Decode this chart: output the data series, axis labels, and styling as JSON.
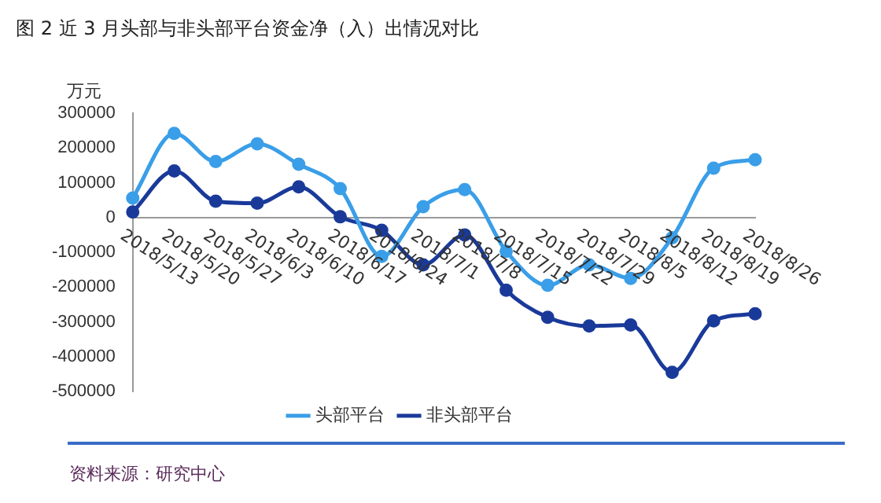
{
  "chart_data": {
    "type": "line",
    "title": "图 2   近 3 月头部与非头部平台资金净（入）出情况对比",
    "ylabel": "万元",
    "categories": [
      "2018/5/13",
      "2018/5/20",
      "2018/5/27",
      "2018/6/3",
      "2018/6/10",
      "2018/6/17",
      "2018/6/24",
      "2018/7/1",
      "2018/7/8",
      "2018/7/15",
      "2018/7/22",
      "2018/7/29",
      "2018/8/5",
      "2018/8/12",
      "2018/8/19",
      "2018/8/26"
    ],
    "series": [
      {
        "name": "头部平台",
        "color": "#3a9ee8",
        "values": [
          56000,
          242000,
          161000,
          212000,
          153000,
          83000,
          -112000,
          31000,
          80000,
          -97000,
          -195000,
          -136000,
          -175000,
          -58000,
          142000,
          166000
        ]
      },
      {
        "name": "非头部平台",
        "color": "#1a3a9a",
        "values": [
          16000,
          134000,
          47000,
          41000,
          88000,
          2000,
          -37000,
          -136000,
          -50000,
          -209000,
          -287000,
          -312000,
          -309000,
          -445000,
          -297000,
          -277000
        ]
      }
    ],
    "ylim": [
      -500000,
      300000
    ],
    "yticks": [
      -500000,
      -400000,
      -300000,
      -200000,
      -100000,
      0,
      100000,
      200000,
      300000
    ],
    "grid": false,
    "legend": "bottom",
    "marker": "circle",
    "line_style": "solid",
    "annotations": [
      "资料来源：研究中心"
    ]
  }
}
